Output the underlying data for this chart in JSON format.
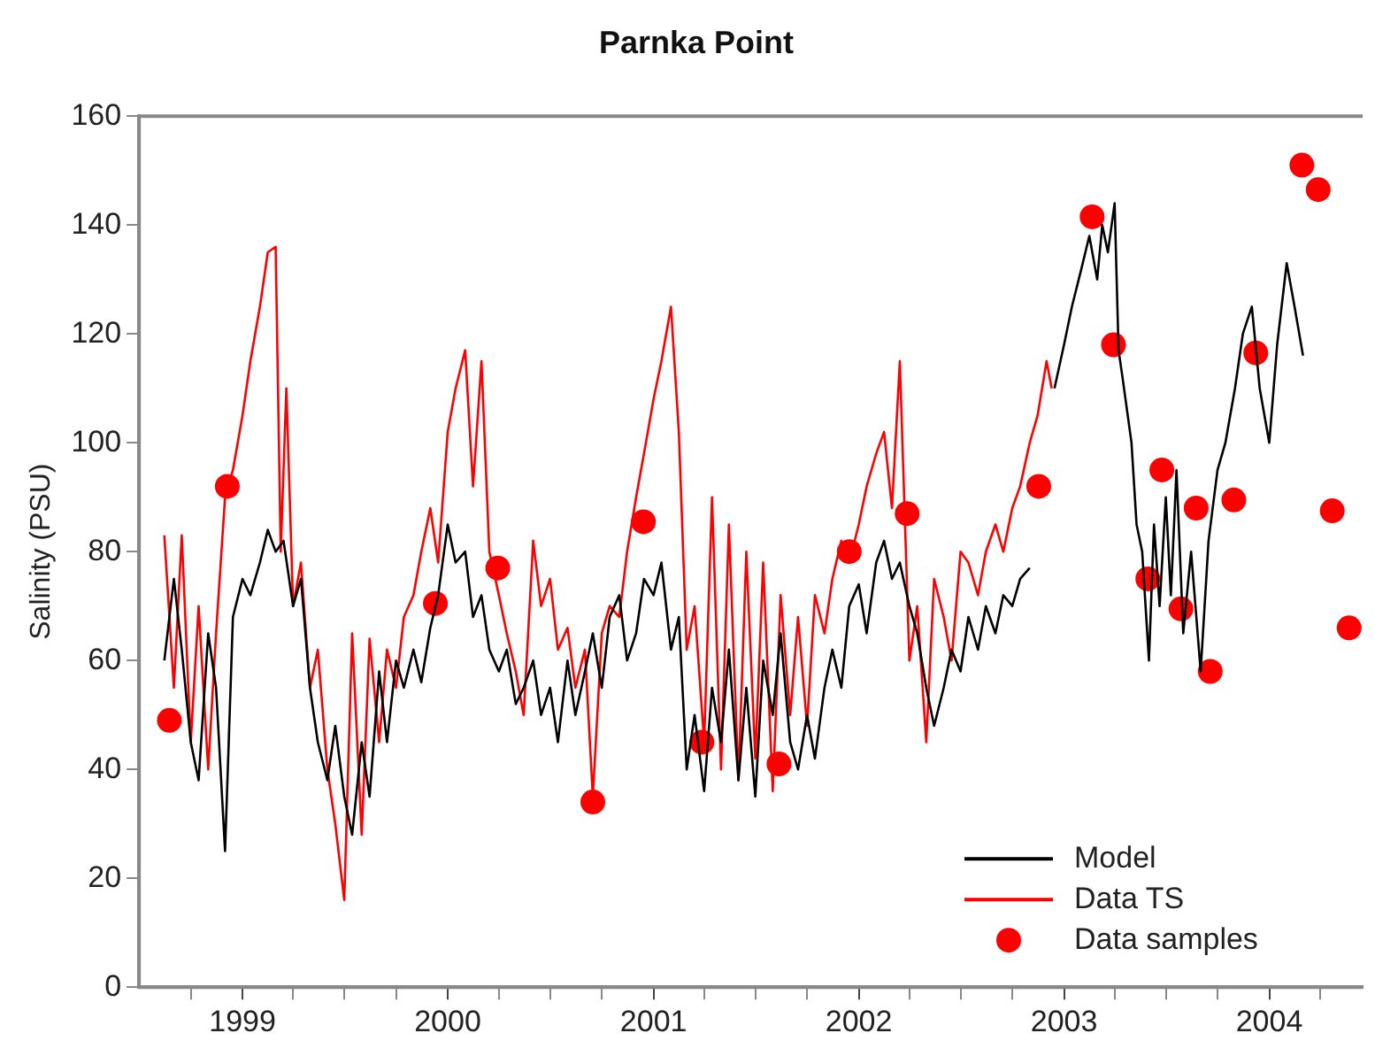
{
  "chart_data": {
    "type": "line",
    "title": "Parnka Point",
    "ylabel": "Salinity (PSU)",
    "xlim": [
      "1998-07-01",
      "2004-06-15"
    ],
    "xticks": [
      "1999",
      {
        "value": "1999-04",
        "label": null
      },
      {
        "value": "1999-07",
        "label": null
      },
      {
        "value": "1999-10",
        "label": null
      },
      "2000",
      {
        "value": "2000-04",
        "label": null
      },
      {
        "value": "2000-07",
        "label": null
      },
      {
        "value": "2000-10",
        "label": null
      },
      "2001",
      {
        "value": "2001-04",
        "label": null
      },
      {
        "value": "2001-07",
        "label": null
      },
      {
        "value": "2001-10",
        "label": null
      },
      "2002",
      {
        "value": "2002-04",
        "label": null
      },
      {
        "value": "2002-07",
        "label": null
      },
      {
        "value": "2002-10",
        "label": null
      },
      "2003",
      {
        "value": "2003-04",
        "label": null
      },
      {
        "value": "2003-07",
        "label": null
      },
      {
        "value": "2003-10",
        "label": null
      },
      "2004",
      {
        "value": "2004-04",
        "label": null
      },
      {
        "value": "1998-10",
        "label": null
      }
    ],
    "ylim": [
      0,
      160
    ],
    "yticks": [
      0,
      20,
      40,
      60,
      80,
      100,
      120,
      140,
      160
    ],
    "grid": false,
    "legend": "bottom right",
    "series": [
      {
        "name": "Model",
        "color": "#000000",
        "marker": "none",
        "x": [
          "1998-08-15",
          "1998-09-01",
          "1998-09-15",
          "1998-10-01",
          "1998-10-15",
          "1998-11-01",
          "1998-11-15",
          "1998-12-01",
          "1998-12-15",
          "1999-01-01",
          "1999-01-15",
          "1999-02-01",
          "1999-02-15",
          "1999-03-01",
          "1999-03-15",
          "1999-04-01",
          "1999-04-15",
          "1999-05-01",
          "1999-05-15",
          "1999-06-01",
          "1999-06-15",
          "1999-07-01",
          "1999-07-15",
          "1999-08-01",
          "1999-08-15",
          "1999-09-01",
          "1999-09-15",
          "1999-10-01",
          "1999-10-15",
          "1999-11-01",
          "1999-11-15",
          "1999-12-01",
          "1999-12-15",
          "2000-01-01",
          "2000-01-15",
          "2000-02-01",
          "2000-02-15",
          "2000-03-01",
          "2000-03-15",
          "2000-04-01",
          "2000-04-15",
          "2000-05-01",
          "2000-05-15",
          "2000-06-01",
          "2000-06-15",
          "2000-07-01",
          "2000-07-15",
          "2000-08-01",
          "2000-08-15",
          "2000-09-01",
          "2000-09-15",
          "2000-10-01",
          "2000-10-15",
          "2000-11-01",
          "2000-11-15",
          "2000-12-01",
          "2000-12-15",
          "2001-01-01",
          "2001-01-15",
          "2001-02-01",
          "2001-02-15",
          "2001-03-01",
          "2001-03-15",
          "2001-04-01",
          "2001-04-15",
          "2001-05-01",
          "2001-05-15",
          "2001-06-01",
          "2001-06-15",
          "2001-07-01",
          "2001-07-15",
          "2001-08-01",
          "2001-08-15",
          "2001-09-01",
          "2001-09-15",
          "2001-10-01",
          "2001-10-15",
          "2001-11-01",
          "2001-11-15",
          "2001-12-01",
          "2001-12-15",
          "2002-01-01",
          "2002-01-15",
          "2002-02-01",
          "2002-02-15",
          "2002-03-01",
          "2002-03-15",
          "2002-04-01",
          "2002-04-15",
          "2002-05-01",
          "2002-05-15",
          "2002-06-01",
          "2002-06-15",
          "2002-07-01",
          "2002-07-15",
          "2002-08-01",
          "2002-08-15",
          "2002-09-01",
          "2002-09-15",
          "2002-10-01",
          "2002-10-15",
          "2002-11-01",
          "2002-11-15",
          "2002-12-15",
          "2003-01-01",
          "2003-01-15",
          "2003-02-01",
          "2003-02-15",
          "2003-03-01",
          "2003-03-10",
          "2003-03-20",
          "2003-04-01",
          "2003-04-08",
          "2003-04-15",
          "2003-05-01",
          "2003-05-10",
          "2003-05-20",
          "2003-06-01",
          "2003-06-10",
          "2003-06-20",
          "2003-07-01",
          "2003-07-10",
          "2003-07-20",
          "2003-08-01",
          "2003-08-15",
          "2003-09-01",
          "2003-09-15",
          "2003-10-01",
          "2003-10-15",
          "2003-11-01",
          "2003-11-15",
          "2003-12-01",
          "2003-12-15",
          "2004-01-01",
          "2004-01-15",
          "2004-02-01",
          "2004-02-15",
          "2004-03-01"
        ],
        "values": [
          60,
          75,
          62,
          45,
          38,
          65,
          55,
          25,
          68,
          75,
          72,
          78,
          84,
          80,
          82,
          70,
          75,
          55,
          45,
          38,
          48,
          35,
          28,
          45,
          35,
          58,
          45,
          60,
          55,
          62,
          56,
          66,
          72,
          85,
          78,
          80,
          68,
          72,
          62,
          58,
          62,
          52,
          55,
          60,
          50,
          55,
          45,
          60,
          50,
          58,
          65,
          55,
          68,
          72,
          60,
          65,
          75,
          72,
          78,
          62,
          68,
          40,
          50,
          36,
          55,
          45,
          62,
          38,
          55,
          35,
          60,
          50,
          65,
          45,
          40,
          50,
          42,
          55,
          62,
          55,
          70,
          74,
          65,
          78,
          82,
          75,
          78,
          70,
          65,
          55,
          48,
          55,
          62,
          58,
          68,
          62,
          70,
          65,
          72,
          70,
          75,
          77,
          null,
          110,
          118,
          125,
          132,
          138,
          130,
          140,
          135,
          144,
          117,
          112,
          100,
          85,
          80,
          60,
          85,
          70,
          90,
          72,
          95,
          65,
          80,
          58,
          82,
          95,
          100,
          110,
          120,
          125,
          110,
          100,
          118,
          133,
          125,
          116
        ]
      },
      {
        "name": "Data TS",
        "color": "#ff0000",
        "marker": "none",
        "x": [
          "1998-08-15",
          "1998-09-01",
          "1998-09-15",
          "1998-10-01",
          "1998-10-15",
          "1998-11-01",
          "1998-11-15",
          "1998-12-01",
          "1998-12-15",
          "1999-01-01",
          "1999-01-15",
          "1999-02-01",
          "1999-02-15",
          "1999-03-01",
          "1999-03-10",
          "1999-03-20",
          "1999-04-01",
          "1999-04-15",
          "1999-05-01",
          "1999-05-15",
          "1999-06-01",
          "1999-06-15",
          "1999-07-01",
          "1999-07-15",
          "1999-08-01",
          "1999-08-15",
          "1999-09-01",
          "1999-09-15",
          "1999-10-01",
          "1999-10-15",
          "1999-11-01",
          "1999-11-15",
          "1999-12-01",
          "1999-12-15",
          "2000-01-01",
          "2000-01-15",
          "2000-02-01",
          "2000-02-15",
          "2000-03-01",
          "2000-03-15",
          "2000-04-01",
          "2000-04-15",
          "2000-05-01",
          "2000-05-15",
          "2000-06-01",
          "2000-06-15",
          "2000-07-01",
          "2000-07-15",
          "2000-08-01",
          "2000-08-15",
          "2000-09-01",
          "2000-09-15",
          "2000-10-01",
          "2000-10-15",
          "2000-11-01",
          "2000-11-15",
          "2000-12-01",
          "2000-12-15",
          "2001-01-01",
          "2001-01-15",
          "2001-02-01",
          "2001-02-15",
          "2001-03-01",
          "2001-03-15",
          "2001-04-01",
          "2001-04-15",
          "2001-05-01",
          "2001-05-15",
          "2001-06-01",
          "2001-06-15",
          "2001-07-01",
          "2001-07-15",
          "2001-08-01",
          "2001-08-15",
          "2001-09-01",
          "2001-09-15",
          "2001-10-01",
          "2001-10-15",
          "2001-11-01",
          "2001-11-15",
          "2001-12-01",
          "2001-12-15",
          "2002-01-01",
          "2002-01-15",
          "2002-02-01",
          "2002-02-15",
          "2002-03-01",
          "2002-03-15",
          "2002-04-01",
          "2002-04-15",
          "2002-05-01",
          "2002-05-15",
          "2002-06-01",
          "2002-06-15",
          "2002-07-01",
          "2002-07-15",
          "2002-08-01",
          "2002-08-15",
          "2002-09-01",
          "2002-09-15",
          "2002-10-01",
          "2002-10-15",
          "2002-11-01",
          "2002-11-15",
          "2002-12-01",
          "2002-12-10"
        ],
        "values": [
          83,
          55,
          83,
          45,
          70,
          40,
          65,
          90,
          95,
          105,
          115,
          125,
          135,
          136,
          80,
          110,
          70,
          78,
          55,
          62,
          40,
          30,
          16,
          65,
          28,
          64,
          45,
          62,
          55,
          68,
          72,
          80,
          88,
          78,
          102,
          110,
          117,
          92,
          115,
          80,
          72,
          65,
          58,
          50,
          82,
          70,
          75,
          62,
          66,
          55,
          62,
          35,
          65,
          70,
          68,
          80,
          90,
          98,
          108,
          115,
          125,
          102,
          62,
          70,
          45,
          90,
          40,
          85,
          38,
          80,
          42,
          78,
          36,
          72,
          50,
          68,
          48,
          72,
          65,
          75,
          82,
          78,
          85,
          92,
          98,
          102,
          88,
          115,
          60,
          70,
          45,
          75,
          68,
          60,
          80,
          78,
          72,
          80,
          85,
          80,
          88,
          92,
          100,
          105,
          115,
          110
        ]
      },
      {
        "name": "Data samples",
        "type": "scatter",
        "color": "#ff0000",
        "marker": "circle",
        "x": [
          "1998-08-24",
          "1998-12-05",
          "1999-12-10",
          "2000-03-30",
          "2000-09-15",
          "2000-12-14",
          "2001-03-28",
          "2001-08-12",
          "2001-12-15",
          "2002-03-28",
          "2002-11-17",
          "2003-02-20",
          "2003-03-30",
          "2003-05-30",
          "2003-06-24",
          "2003-07-28",
          "2003-08-24",
          "2003-09-18",
          "2003-10-30",
          "2003-12-08",
          "2004-02-28",
          "2004-03-28",
          "2004-04-22",
          "2004-05-22"
        ],
        "values": [
          49,
          92,
          70.5,
          77,
          34,
          85.5,
          45,
          41,
          80,
          87,
          92,
          141.5,
          118,
          75,
          95,
          69.5,
          88,
          58,
          89.5,
          116.5,
          151,
          146.5,
          87.5,
          66
        ]
      }
    ]
  }
}
